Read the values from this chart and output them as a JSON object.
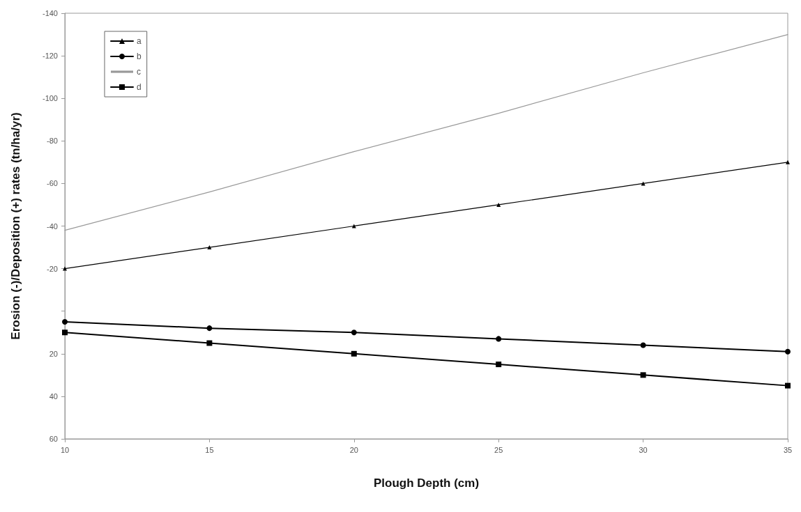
{
  "chart_data": {
    "type": "line",
    "xlabel": "Plough Depth (cm)",
    "ylabel": "Erosion (-)/Deposition (+) rates (tn/ha/yr)",
    "x": [
      10,
      15,
      20,
      25,
      30,
      35
    ],
    "series": [
      {
        "name": "a",
        "color": "#000000",
        "marker": "triangle",
        "values": [
          -20,
          -30,
          -40,
          -50,
          -60,
          -70
        ]
      },
      {
        "name": "b",
        "color": "#000000",
        "marker": "circle",
        "values": [
          5,
          8,
          10,
          13,
          16,
          19
        ]
      },
      {
        "name": "c",
        "color": "#999999",
        "marker": "none",
        "values": [
          -38,
          -56,
          -75,
          -93,
          -112,
          -130
        ]
      },
      {
        "name": "d",
        "color": "#000000",
        "marker": "square",
        "values": [
          10,
          15,
          20,
          25,
          30,
          35
        ]
      }
    ],
    "xlim": [
      10,
      35
    ],
    "xticks": [
      10,
      15,
      20,
      25,
      30,
      35
    ],
    "ylim": [
      60,
      -140
    ],
    "yticks": [
      -140,
      -120,
      -100,
      -80,
      -60,
      -40,
      -20,
      {
        "value": 0,
        "label": null
      },
      20,
      40,
      60
    ],
    "grid": false,
    "legend": "top left"
  }
}
